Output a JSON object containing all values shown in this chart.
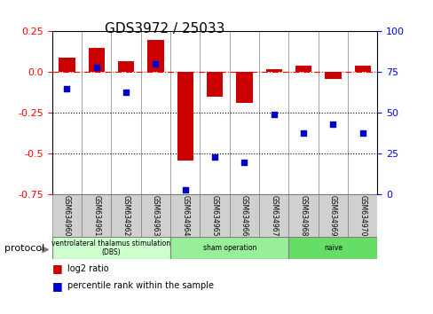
{
  "title": "GDS3972 / 25033",
  "samples": [
    "GSM634960",
    "GSM634961",
    "GSM634962",
    "GSM634963",
    "GSM634964",
    "GSM634965",
    "GSM634966",
    "GSM634967",
    "GSM634968",
    "GSM634969",
    "GSM634970"
  ],
  "log2_ratio": [
    0.09,
    0.15,
    0.07,
    0.2,
    -0.54,
    -0.15,
    -0.19,
    0.02,
    0.04,
    -0.04,
    0.04
  ],
  "percentile_rank": [
    65,
    78,
    63,
    80,
    3,
    23,
    20,
    49,
    38,
    43,
    38
  ],
  "bar_color": "#cc0000",
  "dot_color": "#0000cc",
  "ylim_left": [
    -0.75,
    0.25
  ],
  "ylim_right": [
    0,
    100
  ],
  "yticks_left": [
    0.25,
    0.0,
    -0.25,
    -0.5,
    -0.75
  ],
  "yticks_right": [
    100,
    75,
    50,
    25,
    0
  ],
  "hline_y": 0.0,
  "dotted_lines": [
    -0.25,
    -0.5
  ],
  "groups": [
    {
      "label": "ventrolateral thalamus stimulation\n(DBS)",
      "start": 0,
      "end": 4,
      "color": "#ccffcc"
    },
    {
      "label": "sham operation",
      "start": 4,
      "end": 8,
      "color": "#99ee99"
    },
    {
      "label": "naive",
      "start": 8,
      "end": 11,
      "color": "#66dd66"
    }
  ],
  "protocol_label": "protocol",
  "legend_items": [
    {
      "color": "#cc0000",
      "label": "log2 ratio"
    },
    {
      "color": "#0000cc",
      "label": "percentile rank within the sample"
    }
  ]
}
